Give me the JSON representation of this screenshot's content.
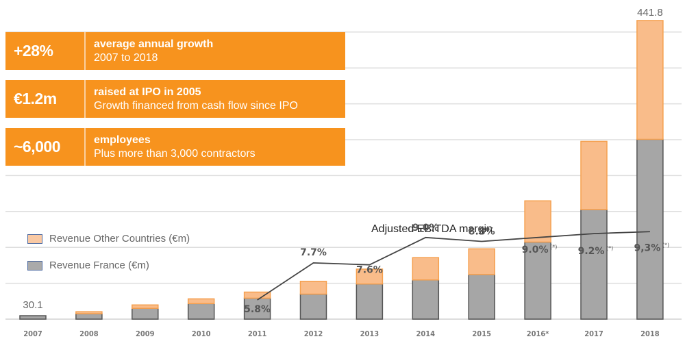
{
  "cards": [
    {
      "big": "+28%",
      "title": "average annual growth",
      "subtitle": "2007 to 2018"
    },
    {
      "big": "€1.2m",
      "title": "raised at IPO in 2005",
      "subtitle": "Growth financed from cash flow since IPO"
    },
    {
      "big": "~6,000",
      "title": "employees",
      "subtitle": "Plus more than 3,000 contractors"
    }
  ],
  "legend": [
    {
      "label": "Revenue Other Countries (€m)",
      "color": "#f9bc8a"
    },
    {
      "label": "Revenue France (€m)",
      "color": "#a6a6a6"
    }
  ],
  "colors": {
    "accent": "#f7931e",
    "other": "#f9bc8a",
    "other_border": "#f5a04f",
    "france": "#a6a6a6",
    "france_border": "#555555",
    "grid": "#dddddd",
    "line": "#444444"
  },
  "chart_data": {
    "type": "bar",
    "stacked": true,
    "title": "",
    "xlabel": "",
    "ylabel": "",
    "ylim": [
      0,
      450
    ],
    "grid": true,
    "legend_position": "left",
    "categories": [
      "2007",
      "2008",
      "2009",
      "2010",
      "2011",
      "2012",
      "2013",
      "2014",
      "2015",
      "2016*",
      "2017",
      "2018"
    ],
    "series": [
      {
        "name": "Revenue France (€m)",
        "values": [
          30.1,
          8,
          16,
          23,
          31,
          37,
          52,
          58,
          66,
          114,
          162,
          266
        ]
      },
      {
        "name": "Revenue Other Countries (€m)",
        "values": [
          0,
          3,
          5,
          7,
          9,
          19,
          22,
          33,
          38,
          61,
          101,
          175.8
        ]
      }
    ],
    "value_labels": [
      {
        "category": "2007",
        "text": "30.1"
      },
      {
        "category": "2018",
        "text": "441.8"
      }
    ],
    "line": {
      "name": "Adjusted EBITDA margin",
      "categories": [
        "2011",
        "2012",
        "2013",
        "2014",
        "2015",
        "2016*",
        "2017",
        "2018"
      ],
      "values": [
        5.8,
        7.7,
        7.6,
        9.0,
        8.8,
        9.0,
        9.2,
        9.3
      ],
      "labels": [
        "5.8%",
        "7.7%",
        "7.6%",
        "9.0%",
        "8.8%",
        "9.0%",
        "9.2%",
        "9,3%"
      ],
      "footnotes": [
        "",
        "",
        "",
        "",
        "",
        "(*)",
        "(*)",
        "(*)"
      ]
    }
  }
}
